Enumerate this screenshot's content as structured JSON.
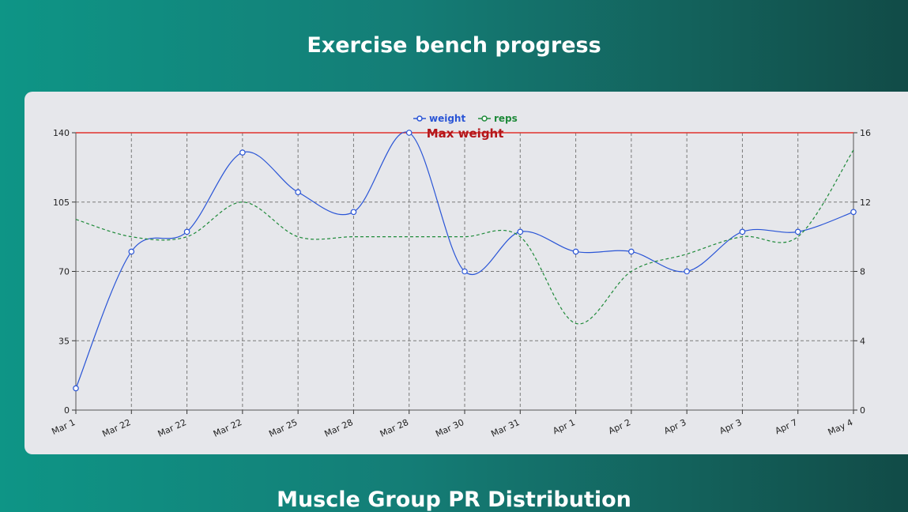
{
  "header": {
    "title": "Exercise bench progress"
  },
  "next_section": {
    "title": "Muscle Group PR Distribution"
  },
  "colors": {
    "weight": "#2a55d6",
    "reps": "#1f8a3a",
    "max_line": "#e0322d",
    "max_label": "#b3161a",
    "grid": "#7a7a7a"
  },
  "chart_data": {
    "type": "line",
    "categories": [
      "Mar 1",
      "Mar 22",
      "Mar 22",
      "Mar 22",
      "Mar 25",
      "Mar 28",
      "Mar 28",
      "Mar 30",
      "Mar 31",
      "Apr 1",
      "Apr 2",
      "Apr 3",
      "Apr 3",
      "Apr 7",
      "May 4"
    ],
    "series": [
      {
        "name": "weight",
        "axis": "left",
        "style": "solid",
        "markers": true,
        "values": [
          11,
          80,
          90,
          130,
          110,
          100,
          140,
          70,
          90,
          80,
          80,
          70,
          90,
          90,
          100
        ]
      },
      {
        "name": "reps",
        "axis": "right",
        "style": "dashed",
        "markers": false,
        "values": [
          11,
          10,
          10,
          12,
          10,
          10,
          10,
          10,
          10,
          5,
          8,
          9,
          10,
          10,
          15
        ]
      }
    ],
    "y_left": {
      "min": 0,
      "max": 140,
      "ticks": [
        0,
        35,
        70,
        105,
        140
      ]
    },
    "y_right": {
      "min": 0,
      "max": 16,
      "ticks": [
        0,
        4,
        8,
        12,
        16
      ]
    },
    "reference_line": {
      "value": 140,
      "axis": "left",
      "label": "Max weight"
    },
    "legend": {
      "position": "top-center",
      "items": [
        "weight",
        "reps"
      ]
    },
    "grid": true
  }
}
